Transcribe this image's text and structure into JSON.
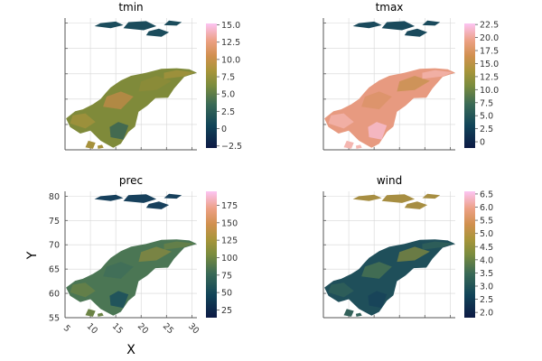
{
  "figure": {
    "xlabel": "X",
    "ylabel": "Y"
  },
  "chart_data": [
    {
      "type": "heatmap",
      "title": "tmin",
      "colorbar": {
        "range": [
          -2.8,
          15.2
        ],
        "ticks": [
          "−2.5",
          "0",
          "2.5",
          "5.0",
          "7.5",
          "10.0",
          "12.5",
          "15.0"
        ],
        "tick_values": [
          -2.5,
          0,
          2.5,
          5.0,
          7.5,
          10.0,
          12.5,
          15.0
        ]
      }
    },
    {
      "type": "heatmap",
      "title": "tmax",
      "colorbar": {
        "range": [
          -1.2,
          22.7
        ],
        "ticks": [
          "0",
          "2.5",
          "5.0",
          "7.5",
          "10.0",
          "12.5",
          "15.0",
          "17.5",
          "20.0",
          "22.5"
        ],
        "tick_values": [
          0,
          2.5,
          5.0,
          7.5,
          10.0,
          12.5,
          15.0,
          17.5,
          20.0,
          22.5
        ]
      }
    },
    {
      "type": "heatmap",
      "title": "prec",
      "xlim": [
        5,
        31
      ],
      "ylim": [
        55,
        81
      ],
      "xticks": [
        "5",
        "10",
        "15",
        "20",
        "25",
        "30"
      ],
      "xtick_values": [
        5,
        10,
        15,
        20,
        25,
        30
      ],
      "yticks": [
        "55",
        "60",
        "65",
        "70",
        "75",
        "80"
      ],
      "ytick_values": [
        55,
        60,
        65,
        70,
        75,
        80
      ],
      "colorbar": {
        "range": [
          14,
          195
        ],
        "ticks": [
          "25",
          "50",
          "75",
          "100",
          "125",
          "150",
          "175"
        ],
        "tick_values": [
          25,
          50,
          75,
          100,
          125,
          150,
          175
        ]
      }
    },
    {
      "type": "heatmap",
      "title": "wind",
      "colorbar": {
        "range": [
          1.8,
          6.6
        ],
        "ticks": [
          "2.0",
          "2.5",
          "3.0",
          "3.5",
          "4.0",
          "4.5",
          "5.0",
          "5.5",
          "6.0",
          "6.5"
        ],
        "tick_values": [
          2.0,
          2.5,
          3.0,
          3.5,
          4.0,
          4.5,
          5.0,
          5.5,
          6.0,
          6.5
        ]
      }
    }
  ]
}
